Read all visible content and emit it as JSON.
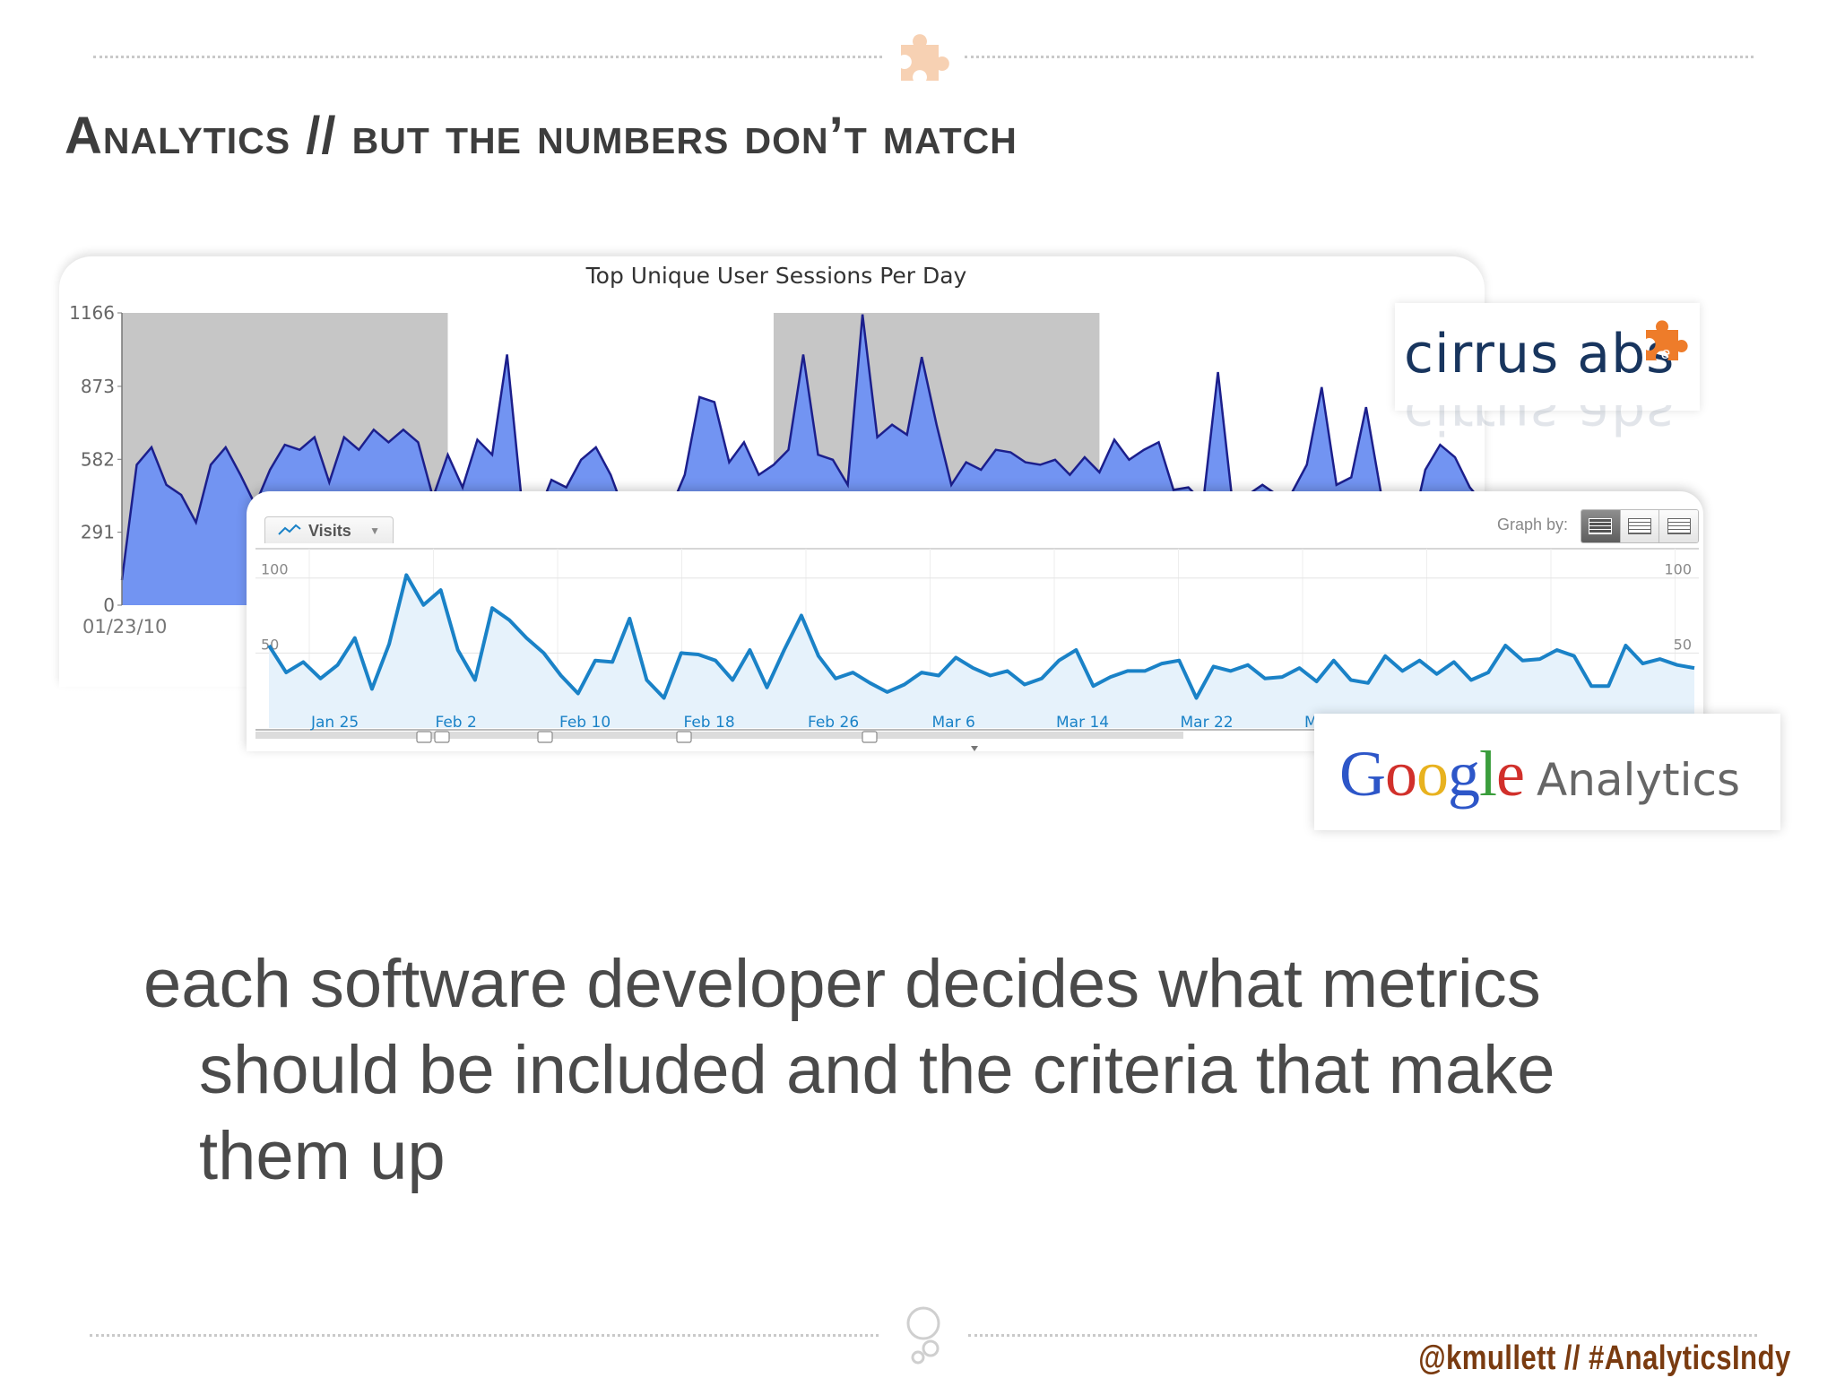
{
  "slide": {
    "title": "Analytics // but the numbers don’t match",
    "body": "each software developer decides what metrics should be included and the criteria that make them up",
    "footer": "@kmullett // #AnalyticsIndy"
  },
  "cirrus_logo": {
    "text": "cirrus abs"
  },
  "ga_logo": {
    "google_letters": [
      "G",
      "o",
      "o",
      "g",
      "l",
      "e"
    ],
    "google_colors": [
      "#2d56c8",
      "#d1302b",
      "#e8b21f",
      "#2d56c8",
      "#3a9d3b",
      "#d1302b"
    ],
    "product": "Analytics"
  },
  "ga_controls": {
    "metric_button": "Visits",
    "graph_by_label": "Graph by:"
  },
  "colors": {
    "cirrus_fill": "#7294f2",
    "cirrus_line": "#1c1f8c",
    "shade": "#c6c6c6",
    "ga_line": "#1a82c7",
    "ga_fill": "#e6f2fb",
    "footer": "#7a3b10",
    "title": "#3d3d3d"
  },
  "chart_data": [
    {
      "type": "area",
      "title": "Top Unique User Sessions Per Day",
      "y_ticks": [
        "0",
        "291",
        "582",
        "873",
        "1166"
      ],
      "ylim": [
        0,
        1166
      ],
      "x_tick_labels": [
        "01/23/10"
      ],
      "shaded_ranges": [
        [
          0,
          22
        ],
        [
          44,
          66
        ]
      ],
      "series": [
        {
          "values": [
            100,
            560,
            630,
            480,
            440,
            330,
            560,
            630,
            520,
            400,
            540,
            640,
            620,
            670,
            490,
            670,
            620,
            700,
            650,
            700,
            650,
            430,
            600,
            470,
            660,
            600,
            1000,
            410,
            350,
            500,
            470,
            580,
            630,
            520,
            360,
            330,
            310,
            380,
            520,
            830,
            810,
            570,
            650,
            520,
            560,
            620,
            1000,
            600,
            580,
            480,
            1160,
            670,
            720,
            680,
            990,
            720,
            480,
            570,
            540,
            620,
            610,
            570,
            560,
            580,
            520,
            590,
            530,
            660,
            580,
            620,
            650,
            460,
            470,
            410,
            930,
            400,
            440,
            480,
            440,
            450,
            560,
            870,
            480,
            510,
            790,
            450,
            410,
            280,
            540,
            640,
            590,
            470,
            400
          ]
        }
      ]
    },
    {
      "type": "line",
      "series": [
        {
          "name": "Visits",
          "values": [
            55,
            37,
            44,
            33,
            42,
            60,
            26,
            56,
            102,
            82,
            92,
            52,
            32,
            80,
            72,
            60,
            50,
            35,
            23,
            45,
            44,
            73,
            32,
            20,
            50,
            49,
            45,
            32,
            52,
            27,
            52,
            75,
            48,
            33,
            37,
            30,
            24,
            29,
            37,
            35,
            47,
            40,
            35,
            38,
            29,
            33,
            45,
            52,
            28,
            34,
            38,
            38,
            43,
            45,
            20,
            41,
            38,
            42,
            33,
            34,
            40,
            31,
            45,
            32,
            30,
            48,
            38,
            45,
            36,
            44,
            32,
            37,
            55,
            45,
            46,
            52,
            48,
            28,
            28,
            55,
            43,
            46,
            42,
            40
          ]
        }
      ],
      "y_ticks": [
        "50",
        "100"
      ],
      "ylim": [
        0,
        110
      ],
      "x_tick_labels": [
        "Jan 25",
        "Feb 2",
        "Feb 10",
        "Feb 18",
        "Feb 26",
        "Mar 6",
        "Mar 14",
        "Mar 22",
        "M"
      ]
    }
  ]
}
